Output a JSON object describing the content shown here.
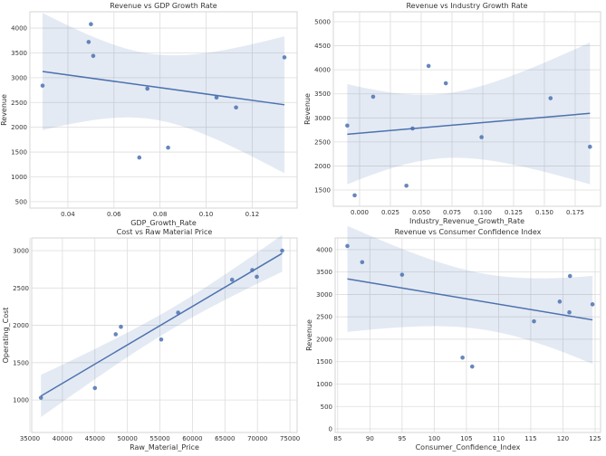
{
  "chart_data": [
    {
      "type": "scatter",
      "title": "Revenue vs GDP Growth Rate",
      "xlabel": "GDP_Growth_Rate",
      "ylabel": "Revenue",
      "xlim": [
        0.0235,
        0.1395
      ],
      "ylim": [
        370,
        4330
      ],
      "xticks": [
        0.04,
        0.06,
        0.08,
        0.1,
        0.12
      ],
      "xtick_labels": [
        "0.04",
        "0.06",
        "0.08",
        "0.10",
        "0.12"
      ],
      "yticks": [
        500,
        1000,
        1500,
        2000,
        2500,
        3000,
        3500,
        4000
      ],
      "x": [
        0.029,
        0.049,
        0.05,
        0.051,
        0.071,
        0.0745,
        0.0835,
        0.1045,
        0.113,
        0.134
      ],
      "y": [
        2840,
        3720,
        4080,
        3440,
        1390,
        2780,
        1590,
        2600,
        2400,
        3410
      ],
      "regression_line": true,
      "confidence_band": true,
      "grid": true
    },
    {
      "type": "scatter",
      "title": "Revenue vs Industry Growth Rate",
      "xlabel": "Industry_Revenue_Growth_Rate",
      "ylabel": "Revenue",
      "xlim": [
        -0.0213,
        0.1956
      ],
      "ylim": [
        1162,
        5207
      ],
      "xticks": [
        0.0,
        0.025,
        0.05,
        0.075,
        0.1,
        0.125,
        0.15,
        0.175
      ],
      "xtick_labels": [
        "0.000",
        "0.025",
        "0.050",
        "0.075",
        "0.100",
        "0.125",
        "0.150",
        "0.175"
      ],
      "yticks": [
        1500,
        2000,
        2500,
        3000,
        3500,
        4000,
        4500,
        5000
      ],
      "x": [
        -0.01,
        -0.004,
        0.011,
        0.038,
        0.043,
        0.056,
        0.07,
        0.099,
        0.155,
        0.187
      ],
      "y": [
        2840,
        1390,
        3440,
        1590,
        2780,
        4080,
        3720,
        2600,
        3410,
        2400
      ],
      "regression_line": true,
      "confidence_band": true,
      "grid": true
    },
    {
      "type": "scatter",
      "title": "Cost vs Raw Material Price",
      "xlabel": "Raw_Material_Price",
      "ylabel": "Operating_Cost",
      "xlim": [
        35280,
        76100
      ],
      "ylim": [
        565,
        3170
      ],
      "xticks": [
        35000,
        40000,
        45000,
        50000,
        55000,
        60000,
        65000,
        70000,
        75000
      ],
      "xtick_labels": [
        "35000",
        "40000",
        "45000",
        "50000",
        "55000",
        "60000",
        "65000",
        "70000",
        "75000"
      ],
      "yticks": [
        1000,
        1500,
        2000,
        2500,
        3000
      ],
      "x": [
        36700,
        45000,
        48200,
        49000,
        55200,
        57800,
        66100,
        69200,
        69900,
        73800
      ],
      "y": [
        1030,
        1160,
        1880,
        1980,
        1810,
        2170,
        2610,
        2740,
        2650,
        3000
      ],
      "regression_line": true,
      "confidence_band": true,
      "grid": true
    },
    {
      "type": "scatter",
      "title": "Revenue vs Consumer Confidence Index",
      "xlabel": "Consumer_Confidence_Index",
      "ylabel": "Revenue",
      "xlim": [
        84.6,
        125.85
      ],
      "ylim": [
        -80,
        4260
      ],
      "xticks": [
        85,
        90,
        95,
        100,
        105,
        110,
        115,
        120,
        125
      ],
      "xtick_labels": [
        "85",
        "90",
        "95",
        "100",
        "105",
        "110",
        "115",
        "120",
        "125"
      ],
      "yticks": [
        0,
        500,
        1000,
        1500,
        2000,
        2500,
        3000,
        3500,
        4000
      ],
      "x": [
        86.5,
        88.8,
        95.0,
        104.4,
        105.9,
        115.5,
        119.5,
        121.0,
        121.1,
        124.6
      ],
      "y": [
        4080,
        3720,
        3440,
        1590,
        1390,
        2400,
        2840,
        2600,
        3410,
        2780
      ],
      "regression_line": true,
      "confidence_band": true,
      "grid": true
    }
  ],
  "colors": {
    "points": "#4c72b0",
    "line": "#4c72b0",
    "band": "#4c72b0",
    "grid": "#dddddd"
  }
}
